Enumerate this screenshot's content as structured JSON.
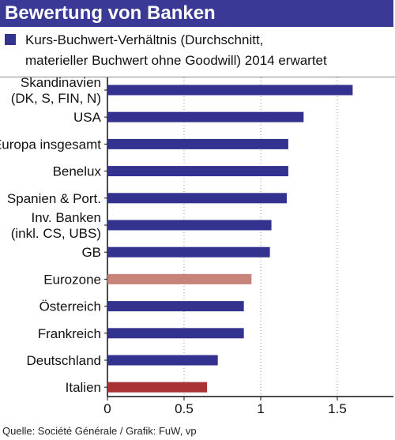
{
  "title": "Bewertung von Banken",
  "legend": {
    "label_line1": "Kurs-Buchwert-Verhältnis (Durchschnitt,",
    "label_line2": "materieller Buchwert ohne Goodwill) 2014 erwartet"
  },
  "source": "Quelle: Société Générale / Grafik: FuW, vp",
  "colors": {
    "series": "#33338f",
    "eurozone": "#c8847a",
    "italien": "#a83234",
    "title_bg": "#3a3a96"
  },
  "chart_data": {
    "type": "bar",
    "orientation": "horizontal",
    "title": "Bewertung von Banken",
    "series": [
      {
        "name": "Kurs-Buchwert-Verhältnis (Durchschnitt, materieller Buchwert ohne Goodwill) 2014 erwartet"
      }
    ],
    "categories": [
      [
        "Skandinavien",
        "(DK, S, FIN, N)"
      ],
      [
        "USA"
      ],
      [
        "Europa insgesamt"
      ],
      [
        "Benelux"
      ],
      [
        "Spanien & Port."
      ],
      [
        "Inv. Banken",
        "(inkl. CS, UBS)"
      ],
      [
        "GB"
      ],
      [
        "Eurozone"
      ],
      [
        "Österreich"
      ],
      [
        "Frankreich"
      ],
      [
        "Deutschland"
      ],
      [
        "Italien"
      ]
    ],
    "values": [
      1.6,
      1.28,
      1.18,
      1.18,
      1.17,
      1.07,
      1.06,
      0.94,
      0.89,
      0.89,
      0.72,
      0.65
    ],
    "bar_colors": [
      "#33338f",
      "#33338f",
      "#33338f",
      "#33338f",
      "#33338f",
      "#33338f",
      "#33338f",
      "#c8847a",
      "#33338f",
      "#33338f",
      "#33338f",
      "#a83234"
    ],
    "xlim": [
      0,
      1.7
    ],
    "xticks": [
      0,
      0.5,
      1,
      1.5
    ],
    "xtick_labels": [
      "0",
      "0.5",
      "1",
      "1.5"
    ],
    "grid": "vertical dotted"
  }
}
